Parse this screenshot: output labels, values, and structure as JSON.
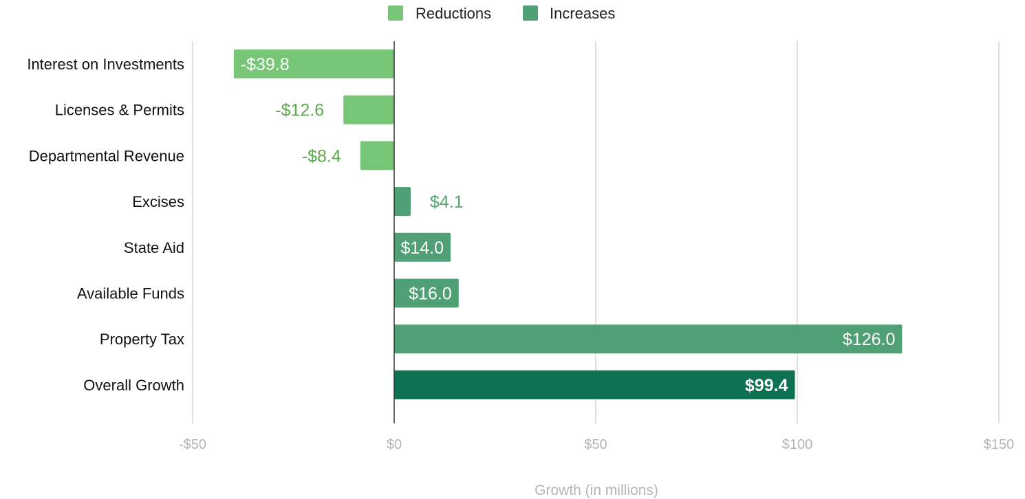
{
  "chart_data": {
    "type": "bar",
    "orientation": "horizontal",
    "title": "",
    "xlabel": "Growth (in millions)",
    "ylabel": "",
    "xlim": [
      -50,
      150
    ],
    "x_ticks": [
      -50,
      0,
      50,
      100,
      150
    ],
    "x_tick_labels": [
      "-$50",
      "$0",
      "$50",
      "$100",
      "$150"
    ],
    "grid": true,
    "legend_position": "top-center",
    "legend": [
      {
        "name": "Reductions",
        "color": "#77c677"
      },
      {
        "name": "Increases",
        "color": "#50a075"
      }
    ],
    "categories": [
      "Interest on Investments",
      "Licenses & Permits",
      "Departmental Revenue",
      "Excises",
      "State Aid",
      "Available Funds",
      "Property Tax",
      "Overall Growth"
    ],
    "values": [
      -39.8,
      -12.6,
      -8.4,
      4.1,
      14.0,
      16.0,
      126.0,
      99.4
    ],
    "data_labels": [
      "-$39.8",
      "-$12.6",
      "-$8.4",
      "$4.1",
      "$14.0",
      "$16.0",
      "$126.0",
      "$99.4"
    ],
    "bar_groups": [
      "Reductions",
      "Reductions",
      "Reductions",
      "Increases",
      "Increases",
      "Increases",
      "Increases",
      "Total"
    ],
    "colors": {
      "Reductions": "#77c677",
      "Increases": "#50a075",
      "Total": "#0e7152",
      "reduction_label_outside": "#5aaa4c",
      "increase_label_outside": "#55a46c"
    }
  }
}
